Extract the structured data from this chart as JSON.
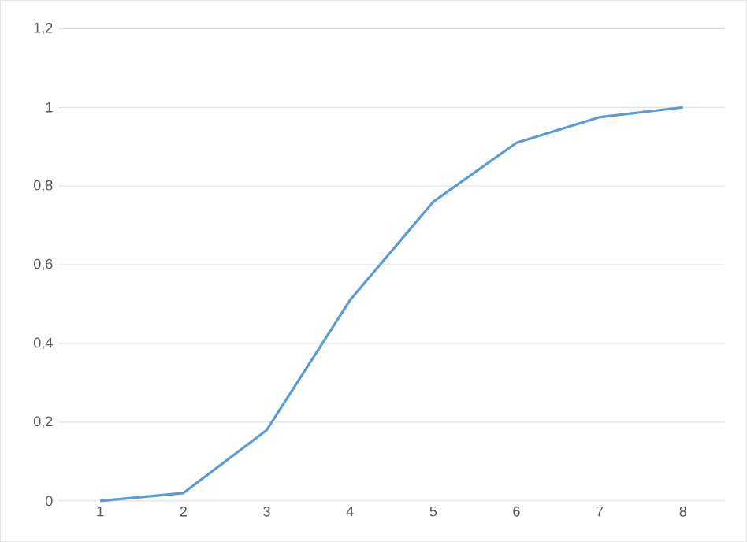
{
  "chart_data": {
    "type": "line",
    "categories": [
      "1",
      "2",
      "3",
      "4",
      "5",
      "6",
      "7",
      "8"
    ],
    "series": [
      {
        "color": "#5b9bd5",
        "values": [
          0,
          0.02,
          0.18,
          0.51,
          0.76,
          0.91,
          0.975,
          1.0
        ]
      }
    ],
    "ylim": [
      0,
      1.2
    ],
    "yticks": [
      {
        "value": 0,
        "label": "0"
      },
      {
        "value": 0.2,
        "label": "0,2"
      },
      {
        "value": 0.4,
        "label": "0,4"
      },
      {
        "value": 0.6,
        "label": "0,6"
      },
      {
        "value": 0.8,
        "label": "0,8"
      },
      {
        "value": 1,
        "label": "1"
      },
      {
        "value": 1.2,
        "label": "1,2"
      }
    ],
    "grid": "y",
    "marker": "none",
    "line_style": "solid"
  }
}
